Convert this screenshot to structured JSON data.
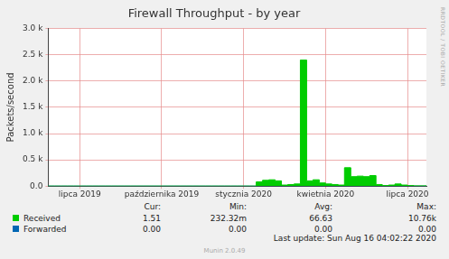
{
  "chart_data": {
    "type": "area",
    "title": "Firewall Throughput - by year",
    "y_label": "Packets/second",
    "watermark": "RRDTOOL / TOBI OETIKER",
    "footer": "Last update: Sun Aug 16 04:02:22 2020",
    "software": "Munin 2.0.49",
    "stats_columns": [
      "Cur:",
      "Min:",
      "Avg:",
      "Max:"
    ],
    "categories": [
      null,
      null,
      null,
      null,
      null,
      "lipca 2019",
      null,
      null,
      null,
      null,
      null,
      null,
      null,
      null,
      null,
      null,
      null,
      null,
      "października 2019",
      null,
      null,
      null,
      null,
      null,
      null,
      null,
      null,
      null,
      null,
      null,
      null,
      "stycznia 2020",
      null,
      null,
      null,
      null,
      null,
      null,
      null,
      null,
      null,
      null,
      null,
      null,
      "kwietnia 2020",
      null,
      null,
      null,
      null,
      null,
      null,
      null,
      null,
      null,
      null,
      null,
      null,
      "lipca 2020",
      null,
      null,
      null
    ],
    "series": [
      {
        "name": "Received",
        "color": "#00cc00",
        "stats": [
          "1.51",
          "232.32m",
          "66.63",
          "10.76k"
        ],
        "values": [
          0,
          0,
          0,
          0,
          0,
          0,
          0,
          0,
          0,
          0,
          0,
          0,
          0,
          0,
          0,
          0,
          0,
          0,
          0,
          0,
          0,
          0,
          0,
          0,
          0,
          0,
          0,
          0,
          0,
          0,
          0,
          0,
          0,
          80,
          110,
          120,
          100,
          20,
          30,
          40,
          2400,
          100,
          120,
          60,
          40,
          30,
          20,
          350,
          180,
          190,
          180,
          200,
          30,
          10,
          20,
          40,
          20,
          10,
          5,
          5,
          2
        ]
      },
      {
        "name": "Forwarded",
        "color": "#0066b3",
        "stats": [
          "0.00",
          "0.00",
          "0.00",
          "0.00"
        ],
        "values": [
          0,
          0,
          0,
          0,
          0,
          0,
          0,
          0,
          0,
          0,
          0,
          0,
          0,
          0,
          0,
          0,
          0,
          0,
          0,
          0,
          0,
          0,
          0,
          0,
          0,
          0,
          0,
          0,
          0,
          0,
          0,
          0,
          0,
          0,
          0,
          0,
          0,
          0,
          0,
          0,
          0,
          0,
          0,
          0,
          0,
          0,
          0,
          0,
          0,
          0,
          0,
          0,
          0,
          0,
          0,
          0,
          0,
          0,
          0,
          0,
          0
        ]
      }
    ],
    "ylim": [
      0,
      3000
    ],
    "yticks": [
      {
        "value": 0,
        "label": "0.0"
      },
      {
        "value": 500,
        "label": "0.5 k"
      },
      {
        "value": 1000,
        "label": "1.0 k"
      },
      {
        "value": 1500,
        "label": "1.5 k"
      },
      {
        "value": 2000,
        "label": "2.0 k"
      },
      {
        "value": 2500,
        "label": "2.5 k"
      },
      {
        "value": 3000,
        "label": "3.0 k"
      }
    ],
    "grid": true
  }
}
